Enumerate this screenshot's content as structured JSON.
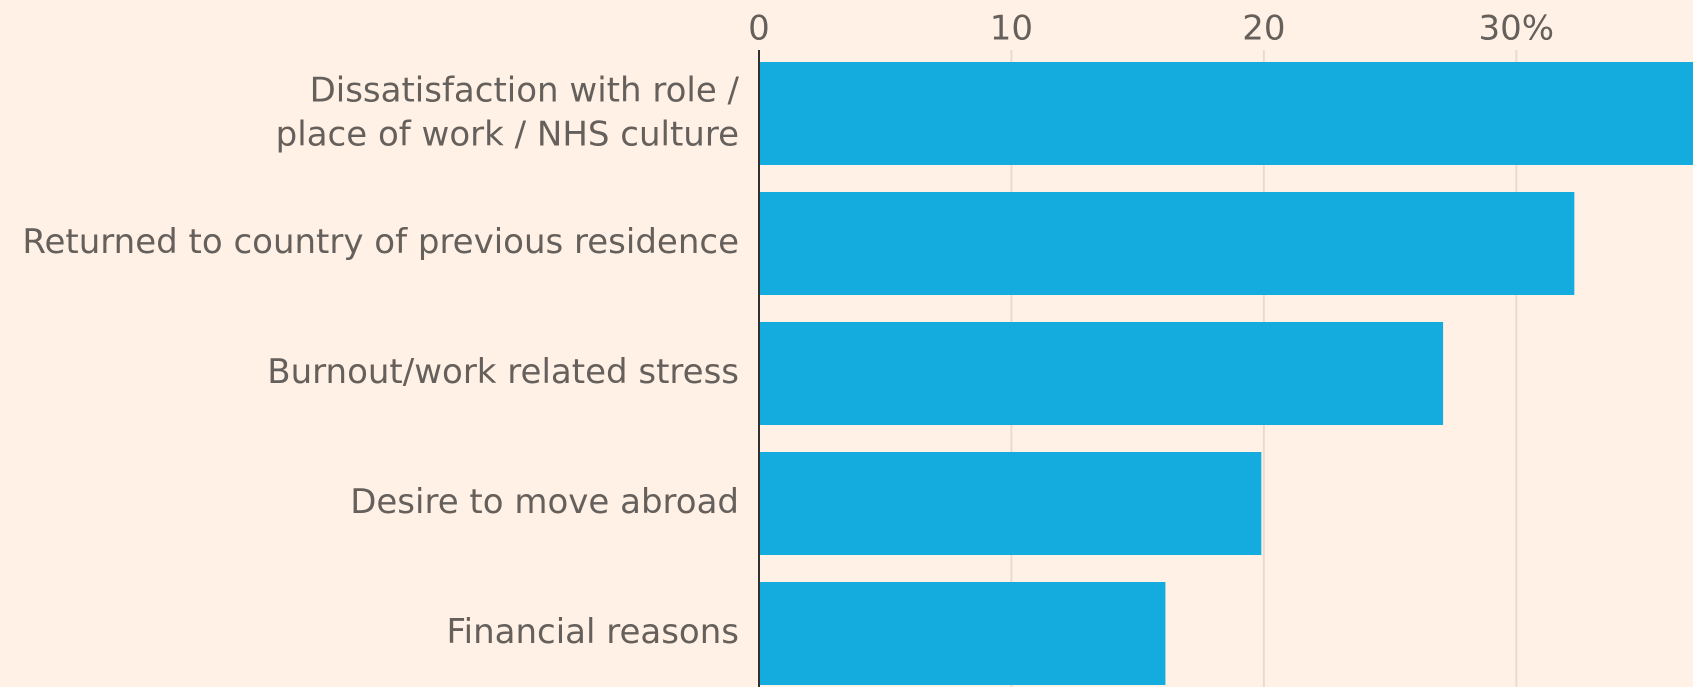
{
  "chart_data": {
    "type": "bar",
    "orientation": "horizontal",
    "categories": [
      "Dissatisfaction with role /\nplace of work / NHS culture",
      "Returned to country of previous residence",
      "Burnout/work related stress",
      "Desire to move abroad",
      "Financial reasons"
    ],
    "values": [
      37,
      32.3,
      27.1,
      19.9,
      16.1
    ],
    "color": "#14acdf",
    "xlim": [
      0,
      37
    ],
    "xticks": [
      0,
      10,
      20,
      {
        "value": 30,
        "label": "30%"
      }
    ],
    "grid": true
  }
}
